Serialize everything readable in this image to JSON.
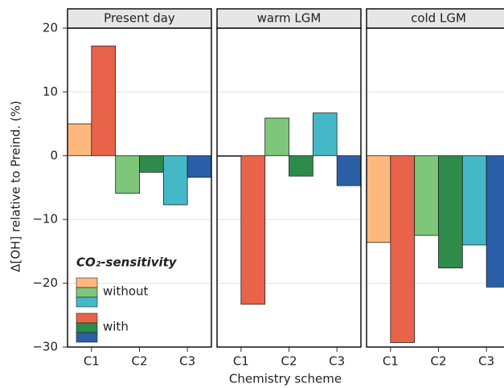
{
  "chart_data": {
    "type": "bar",
    "ylabel": "Δ[OH] relative to Preind. (%)",
    "xlabel": "Chemistry scheme",
    "ylim": [
      -30,
      20
    ],
    "yticks": [
      {
        "value": -30,
        "label": "−30"
      },
      {
        "value": -20,
        "label": "−20"
      },
      {
        "value": -10,
        "label": "−10"
      },
      0,
      10,
      20
    ],
    "grid": true,
    "legend_title": "CO₂-sensitivity",
    "legend_position": "lower left",
    "categories": [
      "C1",
      "C2",
      "C3"
    ],
    "panels": [
      {
        "title": "Present day",
        "series": [
          {
            "name": "without",
            "colors": [
              "#fdb97d",
              "#7dc67a",
              "#45b8c8"
            ],
            "values": [
              5.0,
              -5.9,
              -7.7
            ]
          },
          {
            "name": "with",
            "colors": [
              "#e8634a",
              "#2e8b4a",
              "#2a5fa8"
            ],
            "values": [
              17.2,
              -2.6,
              -3.4
            ]
          }
        ]
      },
      {
        "title": "warm LGM",
        "series": [
          {
            "name": "without",
            "colors": [
              "#fdb97d",
              "#7dc67a",
              "#45b8c8"
            ],
            "values": [
              0.0,
              5.9,
              6.7
            ]
          },
          {
            "name": "with",
            "colors": [
              "#e8634a",
              "#2e8b4a",
              "#2a5fa8"
            ],
            "values": [
              -23.3,
              -3.2,
              -4.7
            ]
          }
        ]
      },
      {
        "title": "cold LGM",
        "series": [
          {
            "name": "without",
            "colors": [
              "#fdb97d",
              "#7dc67a",
              "#45b8c8"
            ],
            "values": [
              -13.6,
              -12.5,
              -14.0
            ]
          },
          {
            "name": "with",
            "colors": [
              "#e8634a",
              "#2e8b4a",
              "#2a5fa8"
            ],
            "values": [
              -29.3,
              -17.6,
              -20.6
            ]
          }
        ]
      }
    ]
  }
}
